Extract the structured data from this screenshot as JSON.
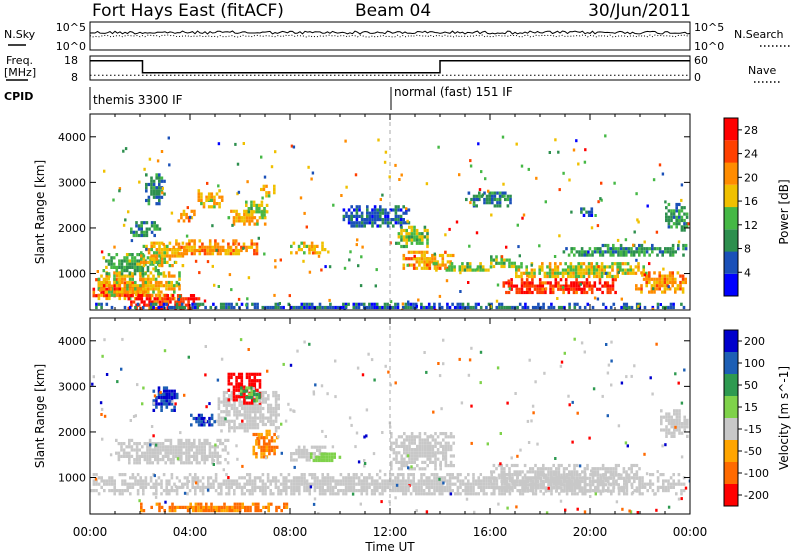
{
  "header": {
    "station": "Fort Hays East (fitACF)",
    "beam": "Beam 04",
    "date": "30/Jun/2011"
  },
  "noise_panel": {
    "left_label": "N.Sky",
    "right_label": "N.Search",
    "left_ticks": [
      "10^5",
      "10^0"
    ],
    "right_ticks": [
      "10^5",
      "10^0"
    ]
  },
  "freq_panel": {
    "left_label_1": "Freq.",
    "left_label_2": "[MHz]",
    "right_label": "Nave",
    "left_ticks": [
      "18",
      "8"
    ],
    "right_ticks": [
      "60",
      "0"
    ]
  },
  "cpid": {
    "label": "CPID",
    "segments": [
      {
        "name": "themis 3300 IF",
        "start_hour": 0,
        "end_hour": 12
      },
      {
        "name": "normal (fast) 151 IF",
        "start_hour": 12,
        "end_hour": 24
      }
    ]
  },
  "time_axis": {
    "label": "Time UT",
    "ticks": [
      "00:00",
      "04:00",
      "08:00",
      "12:00",
      "16:00",
      "20:00",
      "00:00"
    ]
  },
  "colors": {
    "power": [
      "#0000ff",
      "#1a50b8",
      "#2d8f4e",
      "#45b845",
      "#f0c000",
      "#ff8c00",
      "#ff4000",
      "#ff0000"
    ],
    "velocity": [
      "#0000cc",
      "#1d5fb5",
      "#2e9a50",
      "#7fd24a",
      "#c8c8c8",
      "#ffa500",
      "#ff6a00",
      "#ff0000"
    ]
  },
  "chart_data": [
    {
      "type": "line",
      "name": "noise",
      "ylabel": "N.Sky",
      "series": [
        {
          "name": "N.Sky",
          "approx_level": "near 10^5"
        },
        {
          "name": "N.Search",
          "approx_level": "near 10^5"
        }
      ]
    },
    {
      "type": "line",
      "name": "frequency",
      "ylabel": "Freq. [MHz]",
      "ylim": [
        8,
        18
      ],
      "series": [
        {
          "name": "Freq",
          "x_hours": [
            0,
            2.1,
            2.1,
            14.0,
            14.0,
            24
          ],
          "values": [
            16.0,
            16.0,
            11.0,
            11.0,
            16.0,
            16.0
          ]
        },
        {
          "name": "Nave",
          "x_hours": [
            0,
            24
          ],
          "values": [
            12,
            12
          ]
        }
      ]
    },
    {
      "type": "heatmap",
      "name": "power",
      "ylabel": "Slant Range [km]",
      "yticks": [
        1000,
        2000,
        3000,
        4000
      ],
      "ylim": [
        200,
        4500
      ],
      "xlim_hours": [
        0,
        24
      ],
      "colorbar": {
        "label": "Power [dB]",
        "ticks": [
          "28",
          "24",
          "20",
          "16",
          "12",
          "8",
          "4"
        ],
        "range": [
          0,
          30
        ]
      },
      "regions": [
        {
          "t": [
            0.1,
            2.2
          ],
          "r": [
            480,
            900
          ],
          "value": 26
        },
        {
          "t": [
            0.2,
            3.6
          ],
          "r": [
            450,
            1050
          ],
          "value": 18
        },
        {
          "t": [
            1.5,
            4.5
          ],
          "r": [
            250,
            550
          ],
          "value": 26
        },
        {
          "t": [
            0.5,
            2.8
          ],
          "r": [
            1000,
            1450
          ],
          "value": 12
        },
        {
          "t": [
            2.0,
            3.7
          ],
          "r": [
            1200,
            1700
          ],
          "value": 18
        },
        {
          "t": [
            1.6,
            2.8
          ],
          "r": [
            1850,
            2150
          ],
          "value": 10
        },
        {
          "t": [
            3.3,
            6.8
          ],
          "r": [
            1400,
            1750
          ],
          "value": 20
        },
        {
          "t": [
            3.5,
            4.2
          ],
          "r": [
            2150,
            2400
          ],
          "value": 22
        },
        {
          "t": [
            4.3,
            5.3
          ],
          "r": [
            2450,
            2850
          ],
          "value": 18
        },
        {
          "t": [
            5.5,
            7.0
          ],
          "r": [
            2100,
            2400
          ],
          "value": 18
        },
        {
          "t": [
            6.2,
            7.1
          ],
          "r": [
            2250,
            2600
          ],
          "value": 14
        },
        {
          "t": [
            6.8,
            7.4
          ],
          "r": [
            2700,
            2950
          ],
          "value": 18
        },
        {
          "t": [
            2.2,
            3.0
          ],
          "r": [
            2500,
            3200
          ],
          "value": 8
        },
        {
          "t": [
            8.0,
            9.4
          ],
          "r": [
            1450,
            1700
          ],
          "value": 16
        },
        {
          "t": [
            10.0,
            12.8
          ],
          "r": [
            2050,
            2500
          ],
          "value": 6
        },
        {
          "t": [
            12.5,
            14.5
          ],
          "r": [
            1100,
            1500
          ],
          "value": 20
        },
        {
          "t": [
            12.2,
            13.5
          ],
          "r": [
            1600,
            2050
          ],
          "value": 14
        },
        {
          "t": [
            13.7,
            16.0
          ],
          "r": [
            1050,
            1250
          ],
          "value": 14
        },
        {
          "t": [
            16.0,
            17.0
          ],
          "r": [
            1150,
            1400
          ],
          "value": 14
        },
        {
          "t": [
            15.0,
            16.8
          ],
          "r": [
            2500,
            2800
          ],
          "value": 8
        },
        {
          "t": [
            16.5,
            21.0
          ],
          "r": [
            550,
            900
          ],
          "value": 26
        },
        {
          "t": [
            17.0,
            22.4
          ],
          "r": [
            900,
            1250
          ],
          "value": 16
        },
        {
          "t": [
            18.8,
            23.8
          ],
          "r": [
            1400,
            1650
          ],
          "value": 10
        },
        {
          "t": [
            21.8,
            23.8
          ],
          "r": [
            600,
            1050
          ],
          "value": 20
        },
        {
          "t": [
            23.0,
            23.9
          ],
          "r": [
            1950,
            2550
          ],
          "value": 10
        },
        {
          "t": [
            19.5,
            20.2
          ],
          "r": [
            2300,
            2450
          ],
          "value": 6
        },
        {
          "t": [
            0.1,
            23.8
          ],
          "r": [
            250,
            360
          ],
          "value": 6
        }
      ]
    },
    {
      "type": "heatmap",
      "name": "velocity",
      "ylabel": "Slant Range [km]",
      "yticks": [
        1000,
        2000,
        3000,
        4000
      ],
      "ylim": [
        200,
        4500
      ],
      "xlim_hours": [
        0,
        24
      ],
      "colorbar": {
        "label": "Velocity [m s^-1]",
        "ticks": [
          "200",
          "100",
          "50",
          "15",
          "-15",
          "-50",
          "-100",
          "-200"
        ]
      },
      "regions": [
        {
          "t": [
            0.0,
            23.8
          ],
          "r": [
            650,
            1100
          ],
          "value": 0
        },
        {
          "t": [
            1.0,
            5.5
          ],
          "r": [
            1350,
            1850
          ],
          "value": 0
        },
        {
          "t": [
            5.0,
            7.5
          ],
          "r": [
            2000,
            2900
          ],
          "value": 0
        },
        {
          "t": [
            8.0,
            9.5
          ],
          "r": [
            1400,
            1700
          ],
          "value": 0
        },
        {
          "t": [
            12.0,
            14.5
          ],
          "r": [
            1200,
            2000
          ],
          "value": 0
        },
        {
          "t": [
            16.0,
            22.0
          ],
          "r": [
            700,
            1300
          ],
          "value": 0
        },
        {
          "t": [
            22.8,
            23.9
          ],
          "r": [
            1900,
            2500
          ],
          "value": 0
        },
        {
          "t": [
            2.0,
            8.0
          ],
          "r": [
            280,
            450
          ],
          "value": -60
        },
        {
          "t": [
            6.5,
            7.5
          ],
          "r": [
            1450,
            2050
          ],
          "value": -60
        },
        {
          "t": [
            2.5,
            3.5
          ],
          "r": [
            2500,
            3000
          ],
          "value": 200
        },
        {
          "t": [
            4.0,
            5.0
          ],
          "r": [
            2150,
            2400
          ],
          "value": 200
        },
        {
          "t": [
            5.5,
            6.8
          ],
          "r": [
            2600,
            3300
          ],
          "value": -200
        },
        {
          "t": [
            6.0,
            6.8
          ],
          "r": [
            2700,
            3000
          ],
          "value": 60
        },
        {
          "t": [
            8.8,
            10.0
          ],
          "r": [
            1350,
            1550
          ],
          "value": 30
        }
      ]
    }
  ]
}
